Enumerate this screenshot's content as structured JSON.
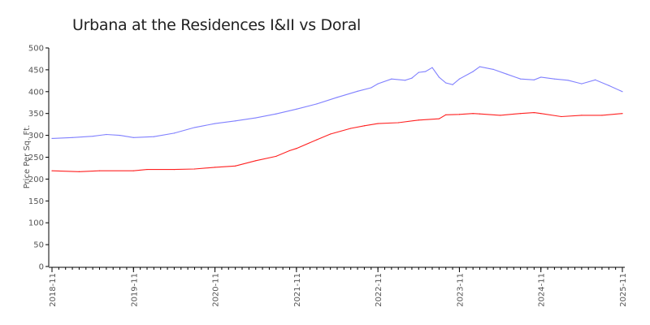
{
  "chart_data": {
    "type": "line",
    "title": "Urbana at the Residences I&II vs Doral",
    "xlabel": "",
    "ylabel": "Price Per Sq. Ft.",
    "ylim": [
      0,
      500
    ],
    "yticks": [
      "0",
      "50",
      "100",
      "150",
      "200",
      "250",
      "300",
      "350",
      "400",
      "450",
      "500"
    ],
    "xticks": [
      "2018-11",
      "2019-11",
      "2020-11",
      "2021-11",
      "2022-11",
      "2023-11",
      "2024-11",
      "2025-11"
    ],
    "xrange": [
      "2018-11",
      "2025-11"
    ],
    "grid": false,
    "legend": "none",
    "series": [
      {
        "color": "#8080ff",
        "points": [
          [
            "2018-11",
            293
          ],
          [
            "2019-02",
            295
          ],
          [
            "2019-05",
            298
          ],
          [
            "2019-07",
            302
          ],
          [
            "2019-09",
            300
          ],
          [
            "2019-11",
            295
          ],
          [
            "2020-02",
            297
          ],
          [
            "2020-05",
            305
          ],
          [
            "2020-08",
            318
          ],
          [
            "2020-11",
            327
          ],
          [
            "2021-02",
            333
          ],
          [
            "2021-05",
            340
          ],
          [
            "2021-08",
            349
          ],
          [
            "2021-11",
            360
          ],
          [
            "2022-02",
            372
          ],
          [
            "2022-05",
            387
          ],
          [
            "2022-08",
            401
          ],
          [
            "2022-10",
            409
          ],
          [
            "2022-11",
            418
          ],
          [
            "2023-01",
            429
          ],
          [
            "2023-03",
            426
          ],
          [
            "2023-04",
            431
          ],
          [
            "2023-05",
            444
          ],
          [
            "2023-06",
            446
          ],
          [
            "2023-07",
            455
          ],
          [
            "2023-08",
            433
          ],
          [
            "2023-09",
            420
          ],
          [
            "2023-10",
            416
          ],
          [
            "2023-11",
            429
          ],
          [
            "2024-01",
            446
          ],
          [
            "2024-02",
            457
          ],
          [
            "2024-04",
            451
          ],
          [
            "2024-06",
            440
          ],
          [
            "2024-08",
            429
          ],
          [
            "2024-10",
            427
          ],
          [
            "2024-11",
            433
          ],
          [
            "2025-01",
            429
          ],
          [
            "2025-03",
            426
          ],
          [
            "2025-05",
            418
          ],
          [
            "2025-07",
            427
          ],
          [
            "2025-09",
            414
          ],
          [
            "2025-11",
            400
          ]
        ]
      },
      {
        "color": "#ff2020",
        "points": [
          [
            "2018-11",
            219
          ],
          [
            "2019-03",
            217
          ],
          [
            "2019-06",
            219
          ],
          [
            "2019-11",
            219
          ],
          [
            "2020-01",
            222
          ],
          [
            "2020-05",
            222
          ],
          [
            "2020-08",
            223
          ],
          [
            "2020-11",
            227
          ],
          [
            "2021-02",
            230
          ],
          [
            "2021-05",
            242
          ],
          [
            "2021-08",
            252
          ],
          [
            "2021-10",
            265
          ],
          [
            "2021-11",
            270
          ],
          [
            "2022-02",
            290
          ],
          [
            "2022-04",
            303
          ],
          [
            "2022-07",
            316
          ],
          [
            "2022-09",
            322
          ],
          [
            "2022-11",
            327
          ],
          [
            "2023-02",
            329
          ],
          [
            "2023-05",
            335
          ],
          [
            "2023-08",
            338
          ],
          [
            "2023-09",
            347
          ],
          [
            "2023-11",
            348
          ],
          [
            "2024-01",
            350
          ],
          [
            "2024-02",
            349
          ],
          [
            "2024-05",
            346
          ],
          [
            "2024-08",
            350
          ],
          [
            "2024-10",
            352
          ],
          [
            "2024-11",
            350
          ],
          [
            "2025-02",
            343
          ],
          [
            "2025-05",
            346
          ],
          [
            "2025-08",
            346
          ],
          [
            "2025-11",
            350
          ]
        ]
      }
    ]
  }
}
